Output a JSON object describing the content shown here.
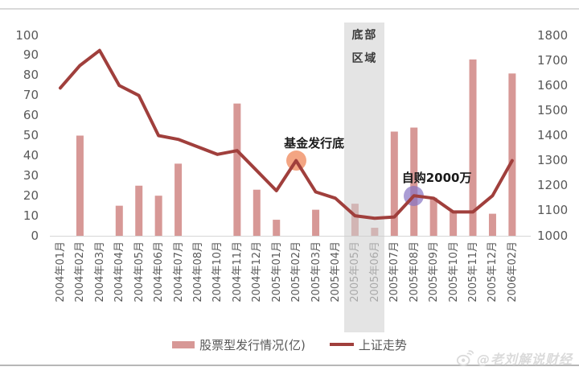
{
  "colors": {
    "bar": "#d79896",
    "line": "#a03f3c",
    "band": "rgba(205,205,205,0.55)",
    "marker_issuance_bottom": "rgba(240,143,100,0.8)",
    "marker_self_purchase": "rgba(135,115,195,0.7)",
    "axis_text": "#595959"
  },
  "chart_data": {
    "type": "bar+line",
    "categories": [
      "2004年01月",
      "2004年02月",
      "2004年03月",
      "2004年04月",
      "2004年05月",
      "2004年06月",
      "2004年07月",
      "2004年08月",
      "2004年10月",
      "2004年11月",
      "2004年12月",
      "2005年01月",
      "2005年02月",
      "2005年03月",
      "2005年04月",
      "2005年05月",
      "2005年06月",
      "2005年07月",
      "2005年08月",
      "2005年09月",
      "2005年10月",
      "2005年11月",
      "2005年12月",
      "2006年02月"
    ],
    "series": [
      {
        "name": "股票型发行情况(亿)",
        "type": "bar",
        "axis": "left",
        "values": [
          0,
          50,
          0,
          15,
          25,
          20,
          36,
          0,
          0,
          66,
          23,
          8,
          0,
          13,
          0,
          16,
          4,
          52,
          54,
          19,
          12,
          88,
          11,
          81
        ]
      },
      {
        "name": "上证走势",
        "type": "line",
        "axis": "right",
        "values": [
          1590,
          1680,
          1740,
          1600,
          1560,
          1400,
          1385,
          1355,
          1325,
          1340,
          1260,
          1180,
          1300,
          1175,
          1150,
          1080,
          1070,
          1075,
          1160,
          1150,
          1095,
          1095,
          1160,
          1300
        ]
      }
    ],
    "ylim_left": [
      0,
      100
    ],
    "ylim_right": [
      1000,
      1800
    ],
    "left_ticks": [
      0,
      10,
      20,
      30,
      40,
      50,
      60,
      70,
      80,
      90,
      100
    ],
    "right_ticks": [
      1000,
      1100,
      1200,
      1300,
      1400,
      1500,
      1600,
      1700,
      1800
    ],
    "grid": "off",
    "legend_position": "bottom",
    "band": {
      "label_line1": "底部",
      "label_line2": "区域",
      "start_index": 15,
      "end_index": 16
    },
    "markers": [
      {
        "label": "基金发行底",
        "index": 12,
        "value": 1300,
        "color_key": "marker_issuance_bottom"
      },
      {
        "label": "自购2000万",
        "index": 18,
        "value": 1160,
        "color_key": "marker_self_purchase"
      }
    ]
  },
  "legend": {
    "bar_label": "股票型发行情况(亿)",
    "line_label": "上证走势"
  },
  "watermark": {
    "text": "@老刘解说财经"
  }
}
